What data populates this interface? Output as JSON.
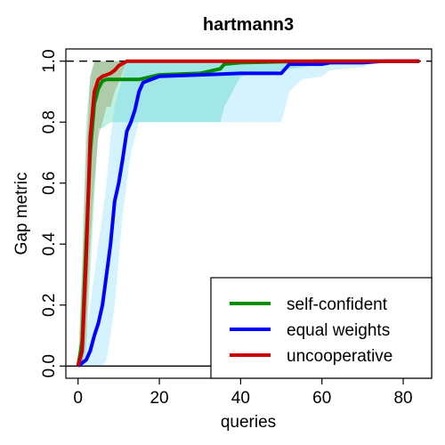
{
  "chart_data": {
    "type": "line",
    "title": "hartmann3",
    "xlabel": "queries",
    "ylabel": "Gap metric",
    "xlim": [
      -3,
      87
    ],
    "ylim": [
      -0.04,
      1.04
    ],
    "xticks": [
      0,
      20,
      40,
      60,
      80
    ],
    "xtick_labels": [
      "0",
      "20",
      "40",
      "60",
      "80"
    ],
    "yticks": [
      0.0,
      0.2,
      0.4,
      0.6,
      0.8,
      1.0
    ],
    "ytick_labels": [
      "0.0",
      "0.2",
      "0.4",
      "0.6",
      "0.8",
      "1.0"
    ],
    "reference_lines": [
      {
        "y": 1.0,
        "style": "dashed",
        "color": "#000000"
      },
      {
        "y": 0.0,
        "style": "solid",
        "color": "#000000"
      }
    ],
    "legend": {
      "position": "bottom-right"
    },
    "series": [
      {
        "name": "self-confident",
        "color": "#008b00",
        "band_color": "rgba(0,200,140,0.26)",
        "x": [
          0,
          1,
          2,
          3,
          4,
          5,
          6,
          7,
          8,
          9,
          12,
          15,
          20,
          30,
          35,
          36,
          40,
          50,
          60,
          65,
          70,
          84
        ],
        "y": [
          0.0,
          0.08,
          0.4,
          0.7,
          0.86,
          0.91,
          0.935,
          0.94,
          0.94,
          0.94,
          0.94,
          0.94,
          0.955,
          0.96,
          0.975,
          0.99,
          0.995,
          0.998,
          1.0,
          1.0,
          1.0,
          1.0
        ],
        "lower": [
          0.0,
          0.0,
          0.05,
          0.3,
          0.55,
          0.78,
          0.78,
          0.79,
          0.8,
          0.8,
          0.8,
          0.8,
          0.8,
          0.8,
          0.8,
          0.85,
          0.95,
          0.97,
          0.99,
          1.0,
          1.0,
          1.0
        ],
        "upper": [
          0.0,
          0.35,
          0.8,
          0.95,
          1.0,
          1.0,
          1.0,
          1.0,
          1.0,
          1.0,
          1.0,
          1.0,
          1.0,
          1.0,
          1.0,
          1.0,
          1.0,
          1.0,
          1.0,
          1.0,
          1.0,
          1.0
        ]
      },
      {
        "name": "equal weights",
        "color": "#0000ff",
        "band_color": "rgba(80,200,255,0.24)",
        "x": [
          0,
          2,
          3,
          4,
          5,
          6,
          7,
          8,
          9,
          10,
          11,
          12,
          13,
          14,
          15,
          16,
          20,
          30,
          40,
          50,
          52,
          55,
          60,
          62,
          70,
          75,
          84
        ],
        "y": [
          0.0,
          0.02,
          0.05,
          0.1,
          0.14,
          0.2,
          0.3,
          0.4,
          0.54,
          0.6,
          0.68,
          0.77,
          0.8,
          0.84,
          0.9,
          0.93,
          0.95,
          0.955,
          0.96,
          0.96,
          0.99,
          0.99,
          0.99,
          0.995,
          0.995,
          1.0,
          1.0
        ],
        "lower": [
          0.0,
          0.0,
          0.0,
          0.0,
          0.0,
          0.0,
          0.02,
          0.1,
          0.2,
          0.35,
          0.5,
          0.6,
          0.7,
          0.75,
          0.8,
          0.8,
          0.8,
          0.8,
          0.8,
          0.8,
          0.9,
          0.94,
          0.95,
          0.97,
          0.98,
          1.0,
          1.0
        ],
        "upper": [
          0.0,
          0.1,
          0.2,
          0.3,
          0.4,
          0.5,
          0.6,
          0.75,
          0.85,
          0.9,
          0.95,
          1.0,
          1.0,
          1.0,
          1.0,
          1.0,
          1.0,
          1.0,
          1.0,
          1.0,
          1.0,
          1.0,
          1.0,
          1.0,
          1.0,
          1.0,
          1.0
        ]
      },
      {
        "name": "uncooperative",
        "color": "#cc0000",
        "band_color": "rgba(140,120,40,0.30)",
        "x": [
          0,
          1,
          2,
          3,
          4,
          5,
          6,
          7,
          8,
          9,
          10,
          12,
          15,
          20,
          30,
          40,
          50,
          60,
          84
        ],
        "y": [
          0.0,
          0.05,
          0.35,
          0.75,
          0.9,
          0.94,
          0.95,
          0.955,
          0.96,
          0.97,
          0.985,
          1.0,
          1.0,
          1.0,
          1.0,
          1.0,
          1.0,
          1.0,
          1.0
        ],
        "lower": [
          0.0,
          0.0,
          0.1,
          0.4,
          0.6,
          0.75,
          0.8,
          0.85,
          0.85,
          0.9,
          0.93,
          1.0,
          1.0,
          1.0,
          1.0,
          1.0,
          1.0,
          1.0,
          1.0
        ],
        "upper": [
          0.0,
          0.3,
          0.7,
          0.95,
          1.0,
          1.0,
          1.0,
          1.0,
          1.0,
          1.0,
          1.0,
          1.0,
          1.0,
          1.0,
          1.0,
          1.0,
          1.0,
          1.0,
          1.0
        ]
      }
    ]
  }
}
